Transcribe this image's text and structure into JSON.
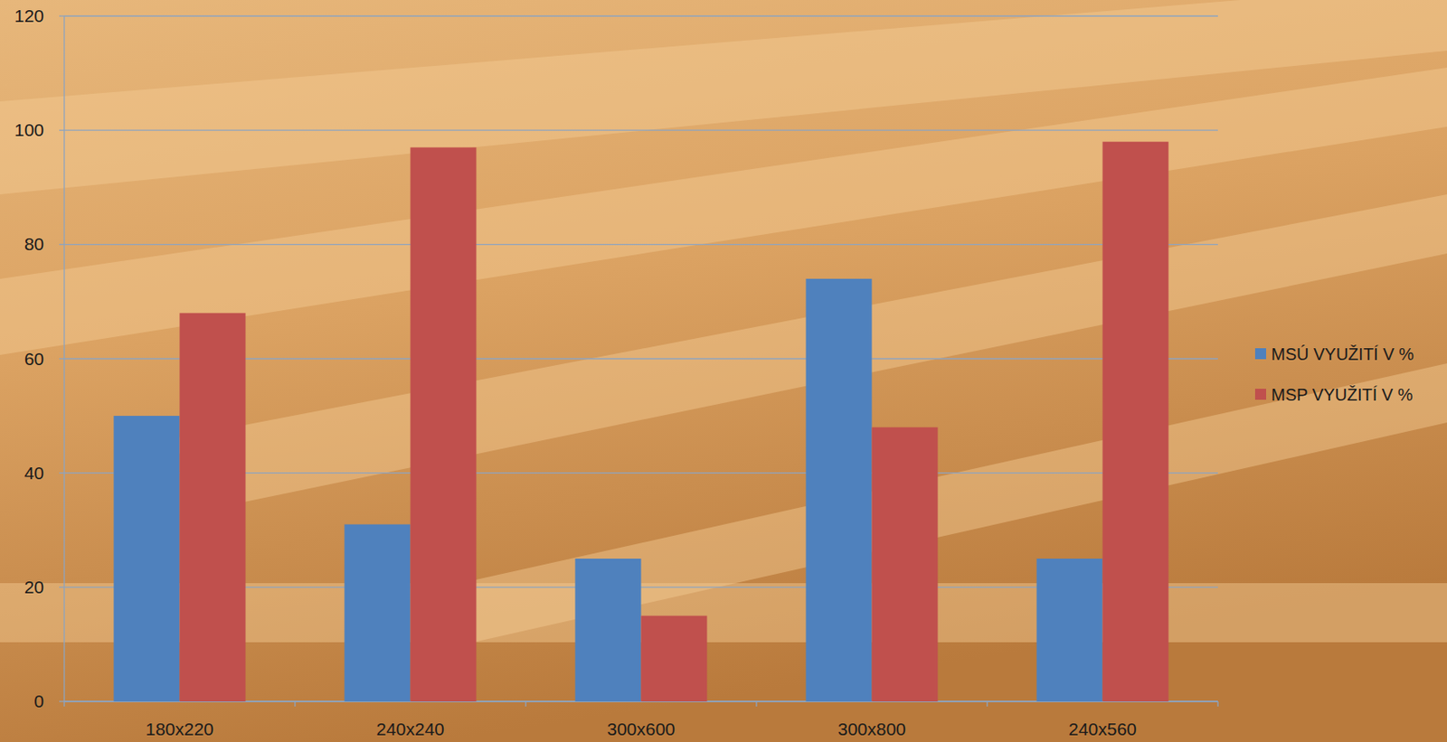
{
  "chart_data": {
    "type": "bar",
    "categories": [
      "180x220",
      "240x240",
      "300x600",
      "300x800",
      "240x560"
    ],
    "series": [
      {
        "name": "MSÚ VYUŽITÍ V %",
        "color": "#4f81bd",
        "values": [
          50,
          31,
          25,
          74,
          25
        ]
      },
      {
        "name": "MSP VYUŽITÍ V %",
        "color": "#c0504d",
        "values": [
          68,
          97,
          15,
          48,
          98
        ]
      }
    ],
    "ylim": [
      0,
      120
    ],
    "yticks": [
      0,
      20,
      40,
      60,
      80,
      100,
      120
    ],
    "grid": true,
    "legend": "right"
  }
}
